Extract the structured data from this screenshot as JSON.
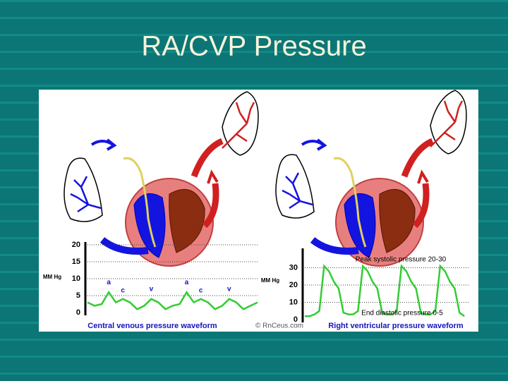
{
  "title": "RA/CVP Pressure",
  "credit": "© RnCeus.com",
  "chart_data": [
    {
      "type": "line",
      "title": "Central venous pressure waveform",
      "y_label": "MM Hg",
      "annotations": [
        "a",
        "c",
        "v",
        "a",
        "c",
        "v"
      ],
      "x": [
        0,
        1,
        2,
        3,
        4,
        5,
        6,
        7,
        8,
        9,
        10,
        11,
        12,
        13,
        14,
        15,
        16,
        17,
        18,
        19,
        20,
        21,
        22,
        23,
        24
      ],
      "xlim": [
        0,
        24
      ],
      "series": [
        {
          "color": "#33cc33",
          "values": [
            3,
            2,
            2.5,
            6,
            3,
            4,
            3,
            1,
            2,
            4,
            3,
            1,
            2,
            2.5,
            6,
            3,
            4,
            3,
            1,
            2,
            4,
            3,
            1,
            2,
            3
          ]
        }
      ],
      "ylim": [
        0,
        20
      ],
      "yticks": [
        0,
        5,
        10,
        15,
        20
      ],
      "grid": true
    },
    {
      "type": "line",
      "title": "Right ventricular pressure waveform",
      "y_label": "MM Hg",
      "annotations": [
        "Peak systolic pressure 20-30",
        "End diastolic pressure 0-5"
      ],
      "x": [
        0,
        1,
        2,
        3,
        4,
        5,
        6,
        7,
        8,
        9,
        10,
        11,
        12,
        13,
        14,
        15,
        16,
        17,
        18,
        19,
        20,
        21,
        22,
        23,
        24,
        25,
        26,
        27,
        28,
        29,
        30,
        31,
        32,
        33
      ],
      "xlim": [
        0,
        34
      ],
      "series": [
        {
          "color": "#33cc33",
          "values": [
            2,
            2,
            3,
            5,
            31,
            28,
            22,
            18,
            4,
            3,
            3,
            5,
            31,
            28,
            22,
            18,
            4,
            3,
            3,
            5,
            31,
            28,
            22,
            18,
            4,
            3,
            3,
            5,
            31,
            28,
            22,
            18,
            4,
            2
          ]
        }
      ],
      "ylim": [
        0,
        40
      ],
      "yticks": [
        0,
        10,
        20,
        30
      ],
      "grid": true
    }
  ]
}
